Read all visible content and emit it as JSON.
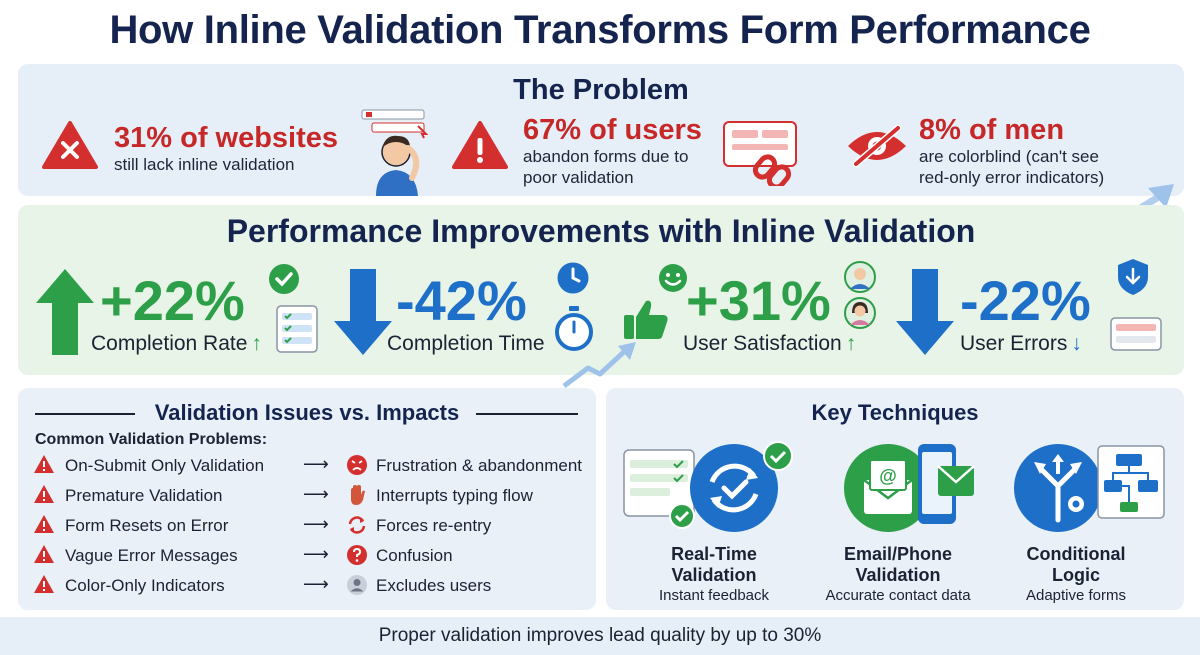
{
  "title": "How Inline Validation Transforms Form Performance",
  "problem": {
    "title": "The Problem",
    "items": [
      {
        "big": "31% of websites",
        "small": "still lack inline validation",
        "icon": "warning-x-icon"
      },
      {
        "big": "67% of users",
        "small": "abandon forms due to poor validation",
        "small_line1": "abandon forms due to",
        "small_line2": "poor validation",
        "icon": "warning-exclamation-icon"
      },
      {
        "big": "8% of men",
        "small": "are colorblind (can't see red-only error indicators)",
        "small_line1": "are colorblind (can't see",
        "small_line2": "red-only error indicators)",
        "icon": "eye-crossed-icon"
      }
    ]
  },
  "performance": {
    "title": "Performance Improvements with Inline Validation",
    "metrics": [
      {
        "value": "+22%",
        "label": "Completion Rate",
        "trend": "↑",
        "color": "#2e9f49"
      },
      {
        "value": "-42%",
        "label": "Completion Time",
        "trend": "",
        "color": "#1e6fc8"
      },
      {
        "value": "+31%",
        "label": "User Satisfaction",
        "trend": "↑",
        "color": "#2e9f49"
      },
      {
        "value": "-22%",
        "label": "User Errors",
        "trend": "↓",
        "color": "#1e6fc8"
      }
    ]
  },
  "issues": {
    "title": "Validation Issues vs. Impacts",
    "subtitle": "Common Validation Problems:",
    "arrow": "⟶",
    "rows": [
      {
        "problem": "On-Submit Only Validation",
        "impact": "Frustration & abandonment",
        "impact_icon": "angry-face-icon"
      },
      {
        "problem": "Premature Validation",
        "impact": "Interrupts typing flow",
        "impact_icon": "stop-hand-icon"
      },
      {
        "problem": "Form Resets on Error",
        "impact": "Forces re-entry",
        "impact_icon": "refresh-icon"
      },
      {
        "problem": "Vague Error Messages",
        "impact": "Confusion",
        "impact_icon": "question-icon"
      },
      {
        "problem": "Color-Only Indicators",
        "impact": "Excludes users",
        "impact_icon": "user-icon"
      }
    ]
  },
  "techniques": {
    "title": "Key Techniques",
    "items": [
      {
        "name_line1": "Real-Time",
        "name_line2": "Validation",
        "desc": "Instant feedback"
      },
      {
        "name_line1": "Email/Phone",
        "name_line2": "Validation",
        "desc": "Accurate contact data"
      },
      {
        "name_line1": "Conditional",
        "name_line2": "Logic",
        "desc": "Adaptive forms"
      }
    ]
  },
  "footer": "Proper validation improves lead quality by up to 30%",
  "colors": {
    "red": "#c62828",
    "green": "#2e9f49",
    "blue": "#1e6fc8",
    "navy": "#14244f"
  }
}
